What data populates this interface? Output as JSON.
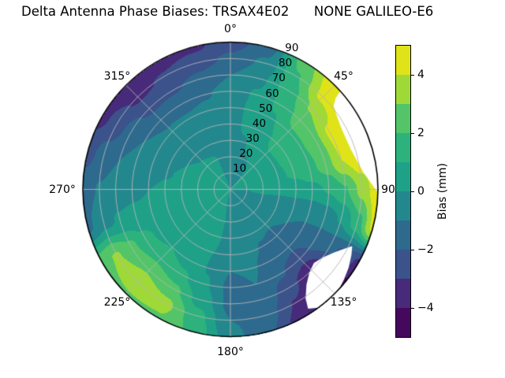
{
  "chart_data": {
    "type": "polar_contour",
    "title": "Delta Antenna Phase Biases: TRSAX4E02      NONE GALILEO-E6",
    "azimuth_ticks": [
      {
        "label": "0°",
        "deg": 0
      },
      {
        "label": "45°",
        "deg": 45
      },
      {
        "label": "90",
        "deg": 90
      },
      {
        "label": "135°",
        "deg": 135
      },
      {
        "label": "180°",
        "deg": 180
      },
      {
        "label": "225°",
        "deg": 225
      },
      {
        "label": "270°",
        "deg": 270
      },
      {
        "label": "315°",
        "deg": 315
      }
    ],
    "radial_ticks": {
      "labels": [
        "10",
        "20",
        "30",
        "40",
        "50",
        "60",
        "70",
        "80",
        "90"
      ],
      "values": [
        10,
        20,
        30,
        40,
        50,
        60,
        70,
        80,
        90
      ],
      "label_azimuth_deg": 23.5
    },
    "colorbar": {
      "label": "Bias (mm)",
      "tick_values": [
        4,
        2,
        0,
        -2,
        -4
      ],
      "tick_labels": [
        "4",
        "2",
        "0",
        "−2",
        "−4"
      ],
      "range": [
        -5,
        5
      ],
      "level_step": 1,
      "band_colors": [
        "#46085c",
        "#472a79",
        "#3b528b",
        "#2e6a8e",
        "#23888e",
        "#1fa188",
        "#2db27d",
        "#53c568",
        "#9fd938",
        "#dfe318"
      ]
    },
    "grid": {
      "azimuth_deg": [
        0,
        15,
        30,
        45,
        60,
        75,
        90,
        105,
        120,
        135,
        150,
        165,
        180,
        195,
        210,
        225,
        240,
        255,
        270,
        285,
        300,
        315,
        330,
        345
      ],
      "radius_deg": [
        0,
        10,
        20,
        30,
        40,
        50,
        60,
        70,
        80,
        90
      ],
      "bias_mm": [
        [
          0.0,
          -0.1,
          -0.15,
          -0.15,
          -0.2,
          -0.3,
          -0.5,
          -1.0,
          -1.8,
          -2.4
        ],
        [
          0.0,
          -0.15,
          -0.15,
          -0.05,
          0.1,
          0.15,
          0.1,
          -0.2,
          -0.8,
          -1.5
        ],
        [
          0.0,
          -0.1,
          0.0,
          0.3,
          0.6,
          0.9,
          1.2,
          1.5,
          1.9,
          2.4
        ],
        [
          0.0,
          0.1,
          0.4,
          0.9,
          1.4,
          1.9,
          2.4,
          3.1,
          4.3,
          4.7
        ],
        [
          0.0,
          0.1,
          0.5,
          0.9,
          1.3,
          1.9,
          2.7,
          4.2,
          4.8,
          4.9
        ],
        [
          0.0,
          0.1,
          0.4,
          0.8,
          1.2,
          1.7,
          2.5,
          4.0,
          4.8,
          4.9
        ],
        [
          0.0,
          0.0,
          0.2,
          0.3,
          0.5,
          0.7,
          1.1,
          1.9,
          3.3,
          4.8
        ],
        [
          0.0,
          -0.1,
          -0.2,
          -0.4,
          -0.6,
          -0.7,
          -0.5,
          0.1,
          1.6,
          4.3
        ],
        [
          0.0,
          -0.2,
          -0.4,
          -0.7,
          -1.0,
          -1.2,
          -1.4,
          -1.7,
          -2.4,
          -3.2
        ],
        [
          0.0,
          -0.25,
          -0.5,
          -0.9,
          -1.3,
          -1.8,
          -2.6,
          -4.0,
          -4.7,
          -4.9
        ],
        [
          0.0,
          -0.25,
          -0.45,
          -0.8,
          -1.1,
          -1.5,
          -1.9,
          -2.5,
          -3.1,
          -3.6
        ],
        [
          0.0,
          -0.2,
          -0.35,
          -0.55,
          -0.75,
          -0.9,
          -1.0,
          -1.1,
          -1.4,
          -1.8
        ],
        [
          0.0,
          -0.2,
          -0.3,
          -0.5,
          -0.7,
          -1.0,
          -1.3,
          -1.3,
          -1.0,
          -0.7
        ],
        [
          0.0,
          0.0,
          0.1,
          0.1,
          0.0,
          -0.05,
          0.1,
          0.6,
          1.4,
          1.8
        ],
        [
          0.0,
          0.15,
          0.3,
          0.4,
          0.4,
          0.6,
          1.2,
          2.3,
          3.3,
          2.9
        ],
        [
          0.0,
          0.2,
          0.4,
          0.5,
          0.7,
          1.0,
          1.7,
          2.9,
          3.7,
          2.9
        ],
        [
          0.0,
          0.2,
          0.35,
          0.45,
          0.55,
          0.8,
          1.3,
          2.3,
          3.1,
          2.7
        ],
        [
          0.0,
          0.2,
          0.3,
          0.3,
          0.25,
          0.2,
          0.2,
          0.1,
          -0.3,
          -1.2
        ],
        [
          0.0,
          0.2,
          0.25,
          0.2,
          0.1,
          0.0,
          -0.2,
          -0.5,
          -0.9,
          -1.5
        ],
        [
          0.0,
          0.15,
          0.2,
          0.1,
          -0.05,
          -0.3,
          -0.6,
          -1.0,
          -1.6,
          -2.3
        ],
        [
          0.0,
          0.1,
          0.15,
          0.0,
          -0.25,
          -0.55,
          -1.0,
          -1.6,
          -2.5,
          -3.3
        ],
        [
          0.0,
          0.1,
          0.1,
          -0.1,
          -0.4,
          -0.8,
          -1.4,
          -2.2,
          -3.2,
          -3.9
        ],
        [
          0.0,
          0.05,
          0.05,
          -0.15,
          -0.45,
          -0.85,
          -1.35,
          -2.1,
          -2.9,
          -3.4
        ],
        [
          0.0,
          -0.05,
          -0.05,
          -0.2,
          -0.4,
          -0.7,
          -1.1,
          -1.7,
          -2.4,
          -3.2
        ]
      ]
    },
    "masked_regions": [
      {
        "name": "no-data-east",
        "polygon_az_r": [
          [
            48,
            91
          ],
          [
            49,
            85
          ],
          [
            51,
            81
          ],
          [
            55,
            79
          ],
          [
            60,
            77.5
          ],
          [
            66,
            77
          ],
          [
            72,
            77.5
          ],
          [
            78,
            79.5
          ],
          [
            83,
            82
          ],
          [
            87,
            85.5
          ],
          [
            90,
            88.5
          ],
          [
            92.5,
            92
          ],
          [
            86,
            95
          ],
          [
            78,
            95
          ],
          [
            70,
            95
          ],
          [
            62,
            95
          ],
          [
            54,
            95
          ],
          [
            49,
            93
          ]
        ]
      },
      {
        "name": "no-data-southeast",
        "polygon_az_r": [
          [
            115,
            82
          ],
          [
            118.5,
            84
          ],
          [
            123.5,
            86.5
          ],
          [
            128.5,
            88.5
          ],
          [
            133.5,
            90.5
          ],
          [
            138.5,
            92
          ],
          [
            143.5,
            90
          ],
          [
            147,
            87
          ],
          [
            145.5,
            81
          ],
          [
            141.5,
            74.5
          ],
          [
            136.5,
            70
          ],
          [
            131.5,
            68
          ],
          [
            126.5,
            70
          ],
          [
            121.5,
            74
          ],
          [
            117.5,
            78.5
          ]
        ]
      }
    ],
    "styles": {
      "grid_color": "#b6b6b6",
      "rim_color": "#000000",
      "background": "#ffffff",
      "mask_color": "#ffffff",
      "text_color": "#000000"
    }
  }
}
